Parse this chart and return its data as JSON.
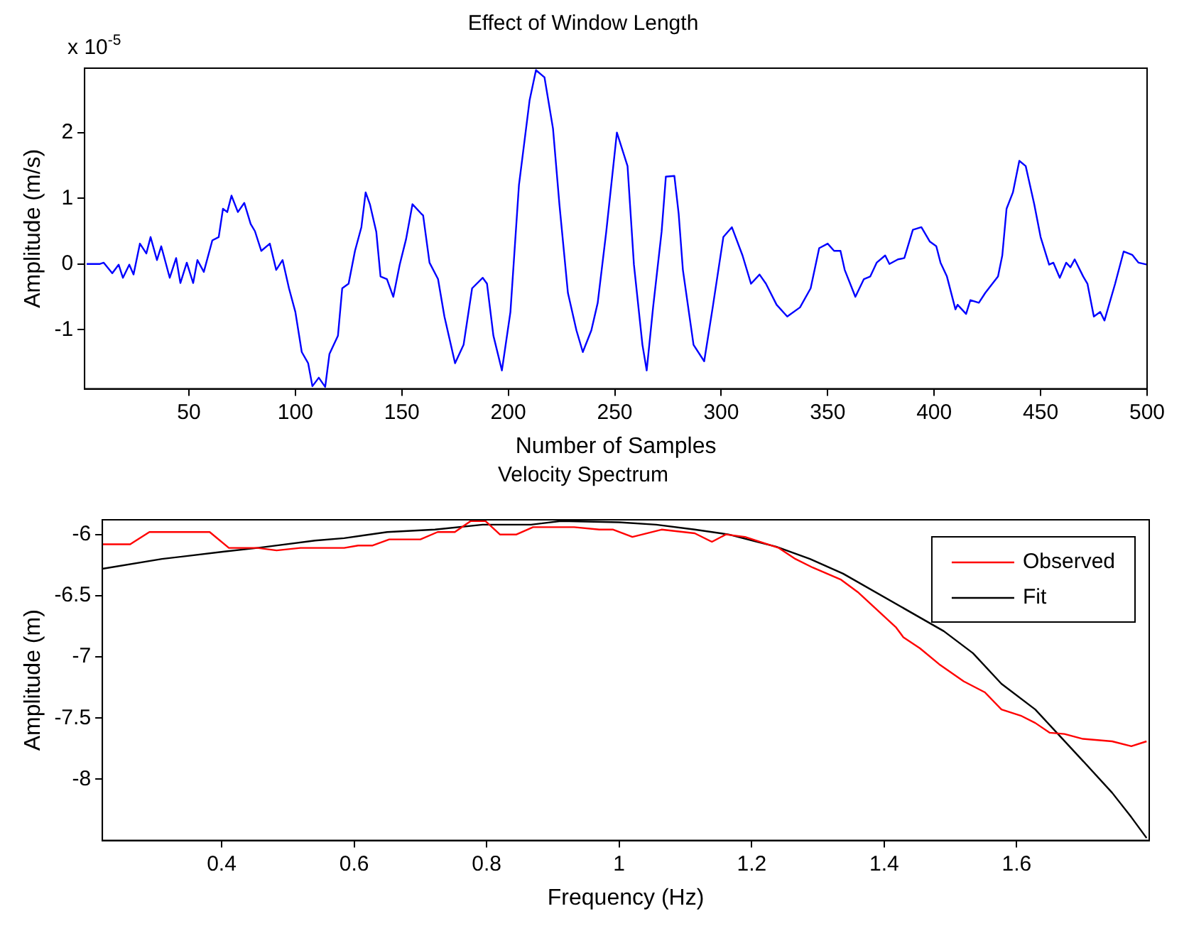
{
  "chart_data": [
    {
      "type": "line",
      "title": "Effect of Window Length",
      "xlabel": "Number of Samples",
      "ylabel": "Amplitude (m/s)",
      "annotations": [
        "x 10$^{-5}$"
      ],
      "color": "#0000ff",
      "x": [
        2,
        8,
        10,
        14,
        17,
        19,
        22,
        24,
        27,
        30,
        32,
        35,
        37,
        41,
        44,
        46,
        49,
        52,
        54,
        57,
        61,
        64,
        66,
        68,
        70,
        73,
        76,
        79,
        81,
        84,
        88,
        91,
        94,
        97,
        100,
        103,
        106,
        108,
        111,
        114,
        116,
        120,
        122,
        125,
        128,
        131,
        133,
        135,
        138,
        140,
        143,
        146,
        149,
        152,
        155,
        159,
        160,
        163,
        167,
        170,
        175,
        179,
        183,
        188,
        190,
        193,
        197,
        201,
        205,
        210,
        213,
        217,
        221,
        224,
        228,
        232,
        235,
        239,
        242,
        246,
        251,
        256,
        259,
        263,
        265,
        268,
        272,
        274,
        278,
        280,
        282,
        287,
        292,
        296,
        301,
        305,
        310,
        314,
        318,
        321,
        326,
        331,
        337,
        342,
        346,
        350,
        353,
        356,
        358,
        363,
        367,
        370,
        373,
        377,
        379,
        383,
        386,
        390,
        394,
        398,
        401,
        403,
        406,
        410,
        411,
        415,
        417,
        421,
        424,
        430,
        432,
        434,
        437,
        440,
        443,
        447,
        450,
        454,
        456,
        459,
        462,
        464,
        466,
        470,
        472,
        475,
        478,
        480,
        485,
        489,
        493,
        496,
        500
      ],
      "values": [
        0,
        0,
        0.02,
        -0.14,
        -0.01,
        -0.21,
        -0.01,
        -0.16,
        0.31,
        0.16,
        0.41,
        0.06,
        0.27,
        -0.21,
        0.09,
        -0.29,
        0.02,
        -0.29,
        0.06,
        -0.12,
        0.36,
        0.41,
        0.84,
        0.79,
        1.04,
        0.79,
        0.93,
        0.61,
        0.5,
        0.2,
        0.31,
        -0.09,
        0.06,
        -0.37,
        -0.73,
        -1.34,
        -1.51,
        -1.86,
        -1.73,
        -1.87,
        -1.37,
        -1.09,
        -0.37,
        -0.3,
        0.2,
        0.56,
        1.09,
        0.91,
        0.49,
        -0.19,
        -0.23,
        -0.5,
        -0.01,
        0.38,
        0.91,
        0.77,
        0.74,
        0.02,
        -0.23,
        -0.8,
        -1.51,
        -1.23,
        -0.37,
        -0.21,
        -0.3,
        -1.09,
        -1.62,
        -0.73,
        1.2,
        2.49,
        2.95,
        2.84,
        2.06,
        0.91,
        -0.44,
        -1.01,
        -1.34,
        -1.01,
        -0.59,
        0.49,
        2.0,
        1.49,
        -0.01,
        -1.23,
        -1.62,
        -0.66,
        0.49,
        1.33,
        1.34,
        0.77,
        -0.09,
        -1.23,
        -1.48,
        -0.66,
        0.41,
        0.56,
        0.13,
        -0.3,
        -0.16,
        -0.3,
        -0.62,
        -0.8,
        -0.66,
        -0.37,
        0.24,
        0.31,
        0.2,
        0.2,
        -0.09,
        -0.5,
        -0.23,
        -0.19,
        0.02,
        0.13,
        0,
        0.07,
        0.09,
        0.52,
        0.56,
        0.34,
        0.27,
        0.02,
        -0.19,
        -0.69,
        -0.62,
        -0.76,
        -0.55,
        -0.59,
        -0.44,
        -0.19,
        0.13,
        0.84,
        1.09,
        1.57,
        1.49,
        0.91,
        0.41,
        -0.01,
        0.02,
        -0.21,
        0.02,
        -0.05,
        0.07,
        -0.19,
        -0.3,
        -0.8,
        -0.73,
        -0.86,
        -0.3,
        0.19,
        0.14,
        0.02,
        -0.01
      ],
      "xlim": [
        1,
        500
      ],
      "ylim": [
        -1.9,
        2.98
      ],
      "xticks": [
        50,
        100,
        150,
        200,
        250,
        300,
        350,
        400,
        450,
        500
      ],
      "yticks": [
        -1,
        0,
        1,
        2
      ]
    },
    {
      "type": "line",
      "title": "Velocity Spectrum",
      "xlabel": "Frequency (Hz)",
      "ylabel": "Amplitude (m)",
      "legend": "top right",
      "series": [
        {
          "name": "Observed",
          "color": "#ff0000",
          "x": [
            0.22,
            0.262,
            0.291,
            0.382,
            0.411,
            0.454,
            0.483,
            0.519,
            0.585,
            0.606,
            0.628,
            0.653,
            0.7,
            0.726,
            0.752,
            0.776,
            0.798,
            0.82,
            0.845,
            0.87,
            0.932,
            0.97,
            0.991,
            1.02,
            1.064,
            1.114,
            1.14,
            1.161,
            1.19,
            1.241,
            1.266,
            1.292,
            1.335,
            1.36,
            1.418,
            1.429,
            1.454,
            1.483,
            1.52,
            1.552,
            1.577,
            1.606,
            1.628,
            1.65,
            1.672,
            1.7,
            1.744,
            1.773,
            1.796
          ],
          "values": [
            -6.08,
            -6.08,
            -5.98,
            -5.98,
            -6.11,
            -6.11,
            -6.13,
            -6.11,
            -6.11,
            -6.09,
            -6.09,
            -6.04,
            -6.04,
            -5.98,
            -5.98,
            -5.89,
            -5.89,
            -6.0,
            -6.0,
            -5.94,
            -5.94,
            -5.96,
            -5.96,
            -6.02,
            -5.96,
            -5.99,
            -6.06,
            -6.0,
            -6.02,
            -6.11,
            -6.2,
            -6.27,
            -6.37,
            -6.47,
            -6.76,
            -6.84,
            -6.93,
            -7.06,
            -7.2,
            -7.29,
            -7.43,
            -7.48,
            -7.54,
            -7.62,
            -7.63,
            -7.67,
            -7.69,
            -7.73,
            -7.69
          ]
        },
        {
          "name": "Fit",
          "color": "#000000",
          "x": [
            0.22,
            0.31,
            0.404,
            0.454,
            0.541,
            0.585,
            0.65,
            0.722,
            0.794,
            0.867,
            0.912,
            1.0,
            1.056,
            1.114,
            1.165,
            1.237,
            1.288,
            1.338,
            1.49,
            1.534,
            1.577,
            1.628,
            1.664,
            1.7,
            1.744,
            1.773,
            1.796
          ],
          "values": [
            -6.28,
            -6.2,
            -6.14,
            -6.11,
            -6.05,
            -6.03,
            -5.98,
            -5.96,
            -5.92,
            -5.92,
            -5.89,
            -5.9,
            -5.92,
            -5.96,
            -6.0,
            -6.1,
            -6.2,
            -6.32,
            -6.79,
            -6.97,
            -7.22,
            -7.43,
            -7.64,
            -7.85,
            -8.11,
            -8.31,
            -8.48
          ]
        }
      ],
      "xlim": [
        0.22,
        1.8
      ],
      "ylim": [
        -8.5,
        -5.88
      ],
      "xticks": [
        0.4,
        0.6,
        0.8,
        1,
        1.2,
        1.4,
        1.6
      ],
      "yticks": [
        -8,
        -7.5,
        -7,
        -6.5,
        -6
      ]
    }
  ]
}
